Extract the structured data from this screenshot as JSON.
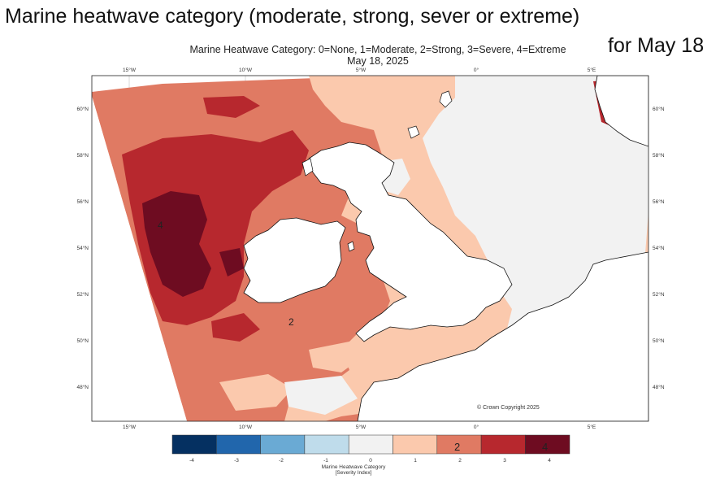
{
  "headline": "Marine heatwave category (moderate, strong, sever or extreme)",
  "for_date": "for May 18",
  "plot": {
    "title_line1": "Marine Heatwave Category: 0=None, 1=Moderate, 2=Strong, 3=Severe, 4=Extreme",
    "title_line2": "May 18, 2025",
    "copyright": "© Crown Copyright 2025",
    "map_annotations": {
      "west_atlantic": "4",
      "celtic_sea": "2"
    }
  },
  "axes": {
    "lon_ticks": [
      "15°W",
      "10°W",
      "5°W",
      "0°",
      "5°E"
    ],
    "lat_ticks": [
      "60°N",
      "58°N",
      "56°N",
      "54°N",
      "52°N",
      "50°N",
      "48°N"
    ],
    "lon_range": [
      -16.6,
      7.6
    ],
    "lat_range": [
      46.5,
      61.4
    ]
  },
  "colorbar": {
    "label_line1": "Marine Heatwave Category",
    "label_line2": "[Severity Index]",
    "ticks": [
      "-4",
      "-3",
      "-2",
      "-1",
      "0",
      "1",
      "2",
      "3",
      "4"
    ],
    "colors": [
      "#053061",
      "#2166ac",
      "#6aaad4",
      "#bfdceb",
      "#f2f2f2",
      "#fbc9ad",
      "#e07a63",
      "#b7282e",
      "#6e0c21"
    ],
    "annotations": {
      "bin2": "2",
      "bin4": "4"
    }
  },
  "legend_colors": {
    "none": "#f2f2f2",
    "moderate": "#fbc9ad",
    "strong": "#e07a63",
    "severe": "#b7282e",
    "extreme": "#6e0c21",
    "land": "#ffffff"
  }
}
